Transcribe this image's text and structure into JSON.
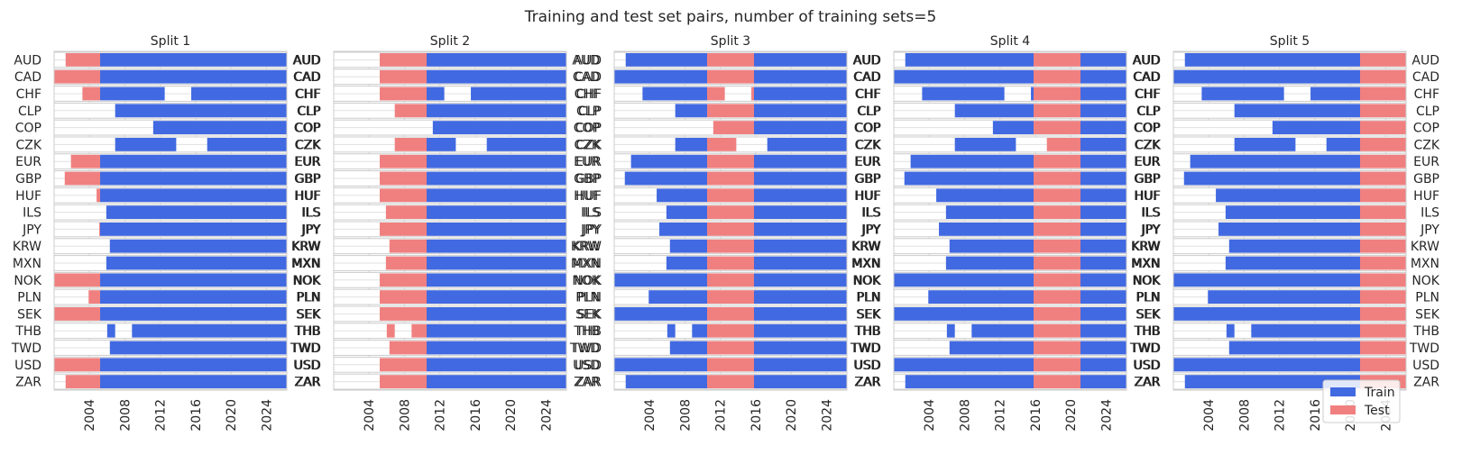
{
  "figure": {
    "title": "Training and test set pairs, number of training sets=5"
  },
  "legend": {
    "placement": "bottom-right",
    "entries": [
      {
        "label": "Train",
        "color": "#4169e1"
      },
      {
        "label": "Test",
        "color": "#f08080"
      }
    ]
  },
  "chart_data": {
    "type": "bar",
    "orientation": "horizontal-timeline",
    "xlim": [
      2000.0,
      2026.3
    ],
    "xticks": [
      2004,
      2008,
      2012,
      2016,
      2020,
      2024
    ],
    "grid": true,
    "colors": {
      "train": "#4169e1",
      "test": "#f08080"
    },
    "categories": [
      "AUD",
      "CAD",
      "CHF",
      "CLP",
      "COP",
      "CZK",
      "EUR",
      "GBP",
      "HUF",
      "ILS",
      "JPY",
      "KRW",
      "MXN",
      "NOK",
      "PLN",
      "SEK",
      "THB",
      "TWD",
      "USD",
      "ZAR"
    ],
    "data_spans": {
      "AUD": [
        [
          2001.3,
          2026.3
        ]
      ],
      "CAD": [
        [
          2000.0,
          2026.3
        ]
      ],
      "CHF": [
        [
          2003.2,
          2012.5
        ],
        [
          2015.5,
          2026.3
        ]
      ],
      "CLP": [
        [
          2006.9,
          2026.3
        ]
      ],
      "COP": [
        [
          2011.2,
          2026.3
        ]
      ],
      "CZK": [
        [
          2006.9,
          2013.8
        ],
        [
          2017.3,
          2026.3
        ]
      ],
      "EUR": [
        [
          2001.9,
          2026.3
        ]
      ],
      "GBP": [
        [
          2001.2,
          2026.3
        ]
      ],
      "HUF": [
        [
          2004.8,
          2026.3
        ]
      ],
      "ILS": [
        [
          2005.9,
          2026.3
        ]
      ],
      "JPY": [
        [
          2005.1,
          2026.3
        ]
      ],
      "KRW": [
        [
          2006.3,
          2026.3
        ]
      ],
      "MXN": [
        [
          2005.9,
          2026.3
        ]
      ],
      "NOK": [
        [
          2000.0,
          2026.3
        ]
      ],
      "PLN": [
        [
          2003.9,
          2026.3
        ]
      ],
      "SEK": [
        [
          2000.0,
          2026.3
        ]
      ],
      "THB": [
        [
          2006.0,
          2006.9
        ],
        [
          2008.8,
          2026.3
        ]
      ],
      "TWD": [
        [
          2006.3,
          2026.3
        ]
      ],
      "USD": [
        [
          2000.0,
          2026.3
        ]
      ],
      "ZAR": [
        [
          2001.3,
          2026.3
        ]
      ]
    },
    "splits": [
      {
        "title": "Split 1",
        "train": [
          2005.2,
          2026.3
        ],
        "test": [
          2000.0,
          2005.2
        ]
      },
      {
        "title": "Split 2",
        "train": [
          2010.5,
          2026.3
        ],
        "test": [
          2005.2,
          2010.5
        ]
      },
      {
        "title": "Split 3",
        "train_before": [
          2000.0,
          2010.5
        ],
        "train": [
          2015.8,
          2026.3
        ],
        "test": [
          2010.5,
          2015.8
        ]
      },
      {
        "title": "Split 4",
        "train_before": [
          2000.0,
          2015.8
        ],
        "train": [
          2021.1,
          2026.3
        ],
        "test": [
          2015.8,
          2021.1
        ]
      },
      {
        "title": "Split 5",
        "train_before": [
          2000.0,
          2021.1
        ],
        "test": [
          2021.1,
          2026.3
        ]
      }
    ]
  }
}
